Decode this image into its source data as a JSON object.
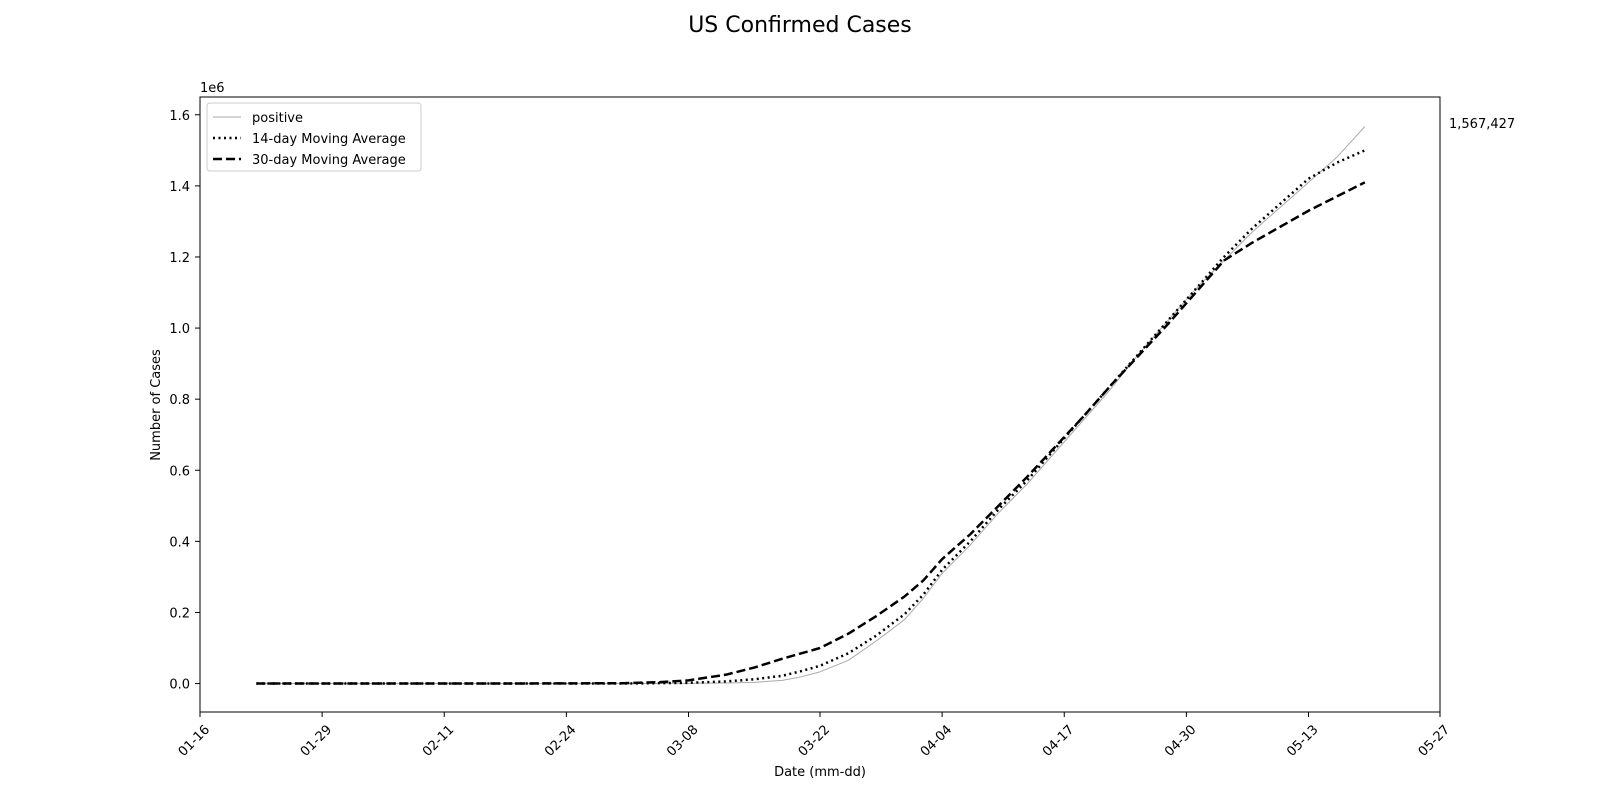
{
  "chart_data": {
    "type": "line",
    "title": "US Confirmed Cases",
    "xlabel": "Date (mm-dd)",
    "ylabel": "Number of Cases",
    "y_offset_label": "1e6",
    "x_tick_labels": [
      "01-16",
      "01-29",
      "02-11",
      "02-24",
      "03-08",
      "03-22",
      "04-04",
      "04-17",
      "04-30",
      "05-13",
      "05-27"
    ],
    "x_range": [
      "01-16",
      "05-27"
    ],
    "y_ticks": [
      0.0,
      0.2,
      0.4,
      0.6,
      0.8,
      1.0,
      1.2,
      1.4,
      1.6
    ],
    "y_tick_labels": [
      "0.0",
      "0.2",
      "0.4",
      "0.6",
      "0.8",
      "1.0",
      "1.2",
      "1.4",
      "1.6"
    ],
    "y_unit": "millions of cases",
    "ylim": [
      -0.08,
      1.65
    ],
    "grid": false,
    "legend_position": "top-left",
    "annotation": "1,567,427",
    "series": [
      {
        "name": "positive",
        "color": "#aaaaaa",
        "style": "solid",
        "points": [
          [
            "01-22",
            0.0
          ],
          [
            "02-01",
            0.0
          ],
          [
            "02-15",
            0.0
          ],
          [
            "03-01",
            0.0001
          ],
          [
            "03-08",
            0.0005
          ],
          [
            "03-12",
            0.0017
          ],
          [
            "03-15",
            0.0035
          ],
          [
            "03-18",
            0.009
          ],
          [
            "03-20",
            0.019
          ],
          [
            "03-22",
            0.033
          ],
          [
            "03-25",
            0.065
          ],
          [
            "03-28",
            0.12
          ],
          [
            "03-31",
            0.18
          ],
          [
            "04-02",
            0.24
          ],
          [
            "04-04",
            0.31
          ],
          [
            "04-07",
            0.39
          ],
          [
            "04-10",
            0.48
          ],
          [
            "04-13",
            0.56
          ],
          [
            "04-16",
            0.65
          ],
          [
            "04-19",
            0.74
          ],
          [
            "04-22",
            0.83
          ],
          [
            "04-25",
            0.93
          ],
          [
            "04-28",
            1.02
          ],
          [
            "05-01",
            1.11
          ],
          [
            "05-04",
            1.19
          ],
          [
            "05-07",
            1.27
          ],
          [
            "05-10",
            1.34
          ],
          [
            "05-13",
            1.41
          ],
          [
            "05-16",
            1.48
          ],
          [
            "05-19",
            1.567
          ]
        ]
      },
      {
        "name": "14-day Moving Average",
        "color": "#000000",
        "style": "dotted",
        "points": [
          [
            "01-22",
            0.0
          ],
          [
            "02-01",
            0.0
          ],
          [
            "02-15",
            0.0
          ],
          [
            "03-01",
            0.0001
          ],
          [
            "03-08",
            0.002
          ],
          [
            "03-12",
            0.006
          ],
          [
            "03-15",
            0.012
          ],
          [
            "03-18",
            0.022
          ],
          [
            "03-20",
            0.035
          ],
          [
            "03-22",
            0.05
          ],
          [
            "03-25",
            0.085
          ],
          [
            "03-28",
            0.135
          ],
          [
            "03-31",
            0.195
          ],
          [
            "04-02",
            0.25
          ],
          [
            "04-04",
            0.32
          ],
          [
            "04-07",
            0.4
          ],
          [
            "04-10",
            0.49
          ],
          [
            "04-13",
            0.57
          ],
          [
            "04-16",
            0.66
          ],
          [
            "04-19",
            0.75
          ],
          [
            "04-22",
            0.84
          ],
          [
            "04-25",
            0.93
          ],
          [
            "04-28",
            1.02
          ],
          [
            "05-01",
            1.11
          ],
          [
            "05-04",
            1.2
          ],
          [
            "05-07",
            1.28
          ],
          [
            "05-10",
            1.35
          ],
          [
            "05-13",
            1.42
          ],
          [
            "05-16",
            1.465
          ],
          [
            "05-19",
            1.5
          ]
        ]
      },
      {
        "name": "30-day Moving Average",
        "color": "#000000",
        "style": "dashed",
        "points": [
          [
            "01-22",
            0.0
          ],
          [
            "02-01",
            0.0
          ],
          [
            "02-15",
            0.0
          ],
          [
            "03-01",
            0.001
          ],
          [
            "03-05",
            0.004
          ],
          [
            "03-08",
            0.009
          ],
          [
            "03-12",
            0.025
          ],
          [
            "03-15",
            0.045
          ],
          [
            "03-18",
            0.07
          ],
          [
            "03-22",
            0.1
          ],
          [
            "03-25",
            0.14
          ],
          [
            "03-28",
            0.19
          ],
          [
            "03-31",
            0.245
          ],
          [
            "04-02",
            0.29
          ],
          [
            "04-04",
            0.35
          ],
          [
            "04-07",
            0.42
          ],
          [
            "04-10",
            0.5
          ],
          [
            "04-13",
            0.58
          ],
          [
            "04-16",
            0.665
          ],
          [
            "04-19",
            0.75
          ],
          [
            "04-22",
            0.84
          ],
          [
            "04-25",
            0.925
          ],
          [
            "04-28",
            1.01
          ],
          [
            "05-01",
            1.1
          ],
          [
            "05-04",
            1.19
          ],
          [
            "05-07",
            1.24
          ],
          [
            "05-10",
            1.285
          ],
          [
            "05-13",
            1.33
          ],
          [
            "05-16",
            1.37
          ],
          [
            "05-19",
            1.41
          ]
        ]
      }
    ]
  }
}
